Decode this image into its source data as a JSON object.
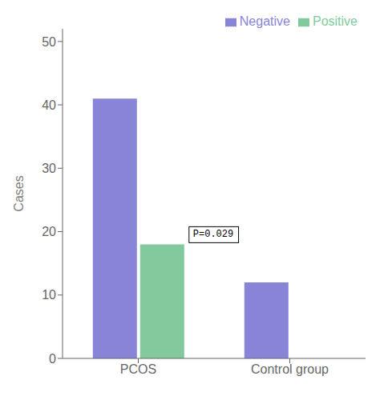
{
  "chart_data": {
    "type": "bar",
    "categories": [
      "PCOS",
      "Control group"
    ],
    "series": [
      {
        "name": "Negative",
        "color": "#8884d8",
        "values": [
          41,
          12
        ]
      },
      {
        "name": "Positive",
        "color": "#82ca9d",
        "values": [
          18,
          0
        ]
      }
    ],
    "ylabel": "Cases",
    "ylim": [
      0,
      52
    ],
    "yticks": [
      0,
      10,
      20,
      30,
      40,
      50
    ],
    "annotation": "P=0.029",
    "legend": "upper right",
    "grid": false
  }
}
